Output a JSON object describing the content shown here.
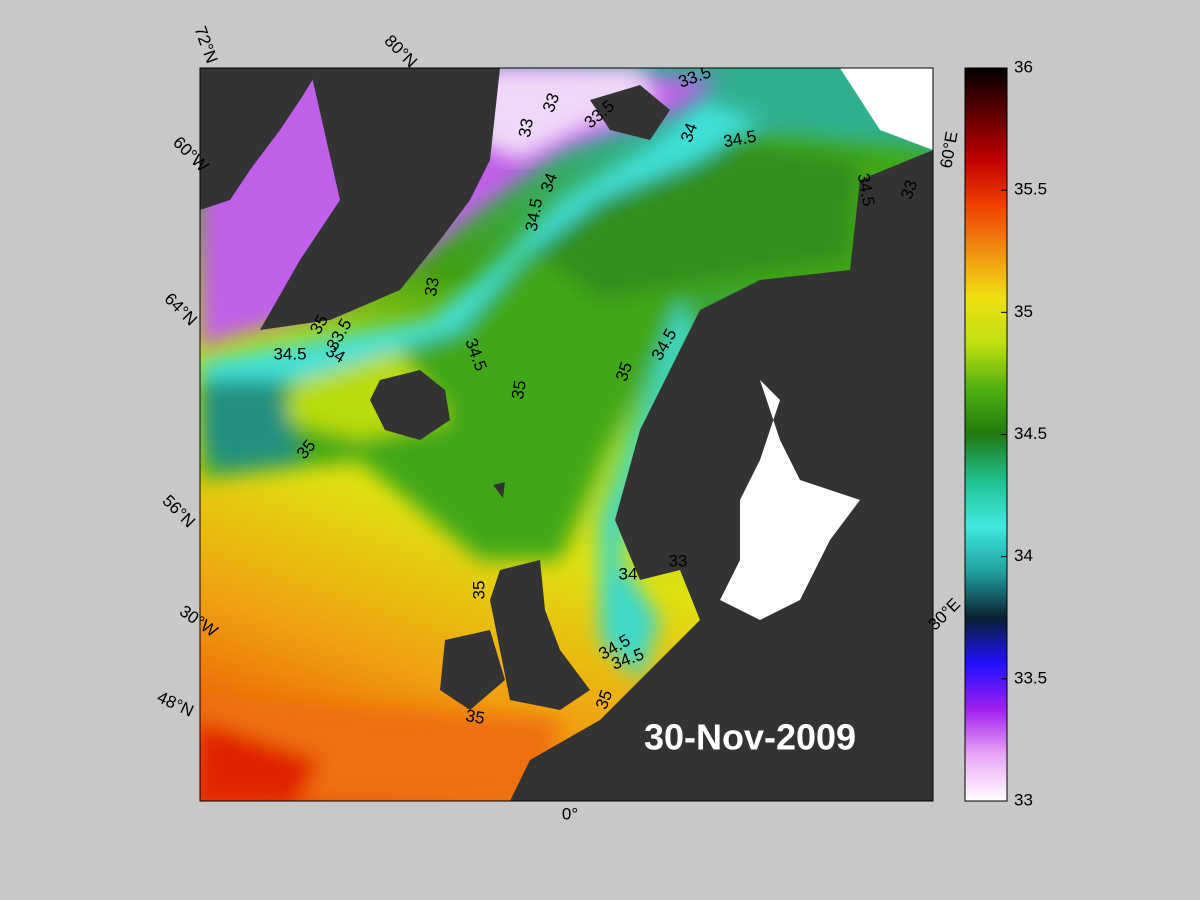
{
  "map": {
    "date_label": "30-Nov-2009",
    "graticule_labels": [
      "72°N",
      "80°N",
      "60°W",
      "64°N",
      "56°N",
      "30°W",
      "48°N",
      "0°",
      "30°E",
      "60°E"
    ],
    "contour_labels": [
      33.5,
      33,
      33,
      33.5,
      34,
      34.5,
      34,
      34.5,
      33,
      35,
      33.5,
      34.5,
      34,
      34.5,
      35,
      35,
      34.5,
      35,
      34.5,
      33,
      35,
      34,
      33,
      34.5,
      34.5,
      35,
      35
    ]
  },
  "colorbar": {
    "range": [
      33,
      36
    ],
    "ticks": [
      33,
      33.5,
      34,
      34.5,
      35,
      35.5,
      36
    ],
    "colors": [
      "#ffffff",
      "#e9a6f5",
      "#a020f0",
      "#2010ff",
      "#0a2030",
      "#20a0a0",
      "#40e8e0",
      "#20c090",
      "#207a10",
      "#50b010",
      "#c0e010",
      "#f0e010",
      "#f09010",
      "#f04000",
      "#c00000",
      "#600000",
      "#000000"
    ]
  }
}
